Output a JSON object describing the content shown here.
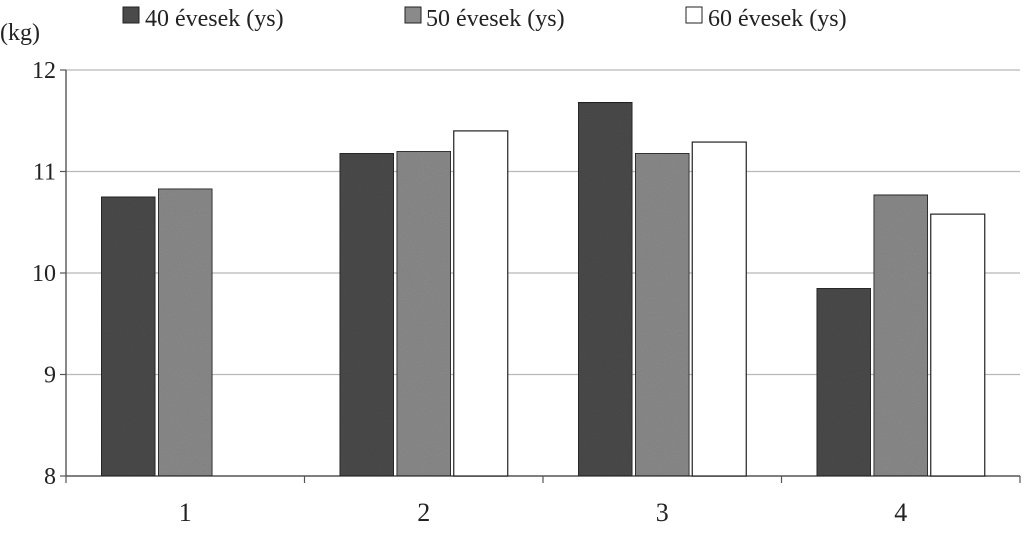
{
  "chart_data": {
    "type": "bar",
    "categories": [
      "1",
      "2",
      "3",
      "4"
    ],
    "series": [
      {
        "name": "40 évesek (ys)",
        "values": [
          10.75,
          11.18,
          11.68,
          9.85
        ],
        "color": "#4a4a4a"
      },
      {
        "name": "50 évesek (ys)",
        "values": [
          10.83,
          11.2,
          11.18,
          10.77
        ],
        "color": "#8a8a8a"
      },
      {
        "name": "60 évesek (ys)",
        "values": [
          null,
          11.4,
          11.29,
          10.58
        ],
        "color": "#ffffff"
      }
    ],
    "ylabel": "(kg)",
    "ylim": [
      8,
      12
    ],
    "yticks": [
      "8",
      "9",
      "10",
      "11",
      "12"
    ],
    "grid": true,
    "legend_position": "top"
  }
}
